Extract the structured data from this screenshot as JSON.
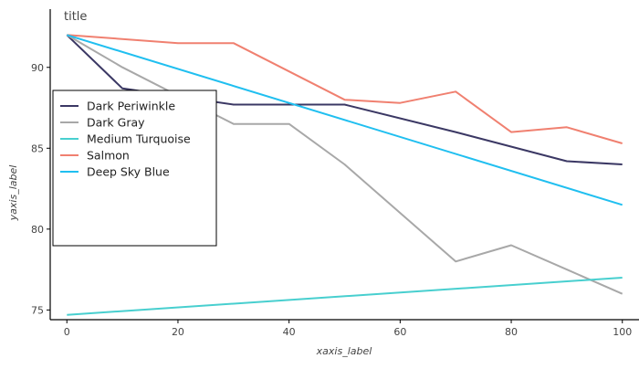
{
  "chart_data": {
    "type": "line",
    "title": "title",
    "xlabel": "xaxis_label",
    "ylabel": "yaxis_label",
    "xlim": [
      -3,
      103
    ],
    "ylim": [
      74.4,
      93.6
    ],
    "x_ticks": [
      0,
      20,
      40,
      60,
      80,
      100
    ],
    "y_ticks": [
      75,
      80,
      85,
      90
    ],
    "legend": {
      "placement": "left"
    },
    "series": [
      {
        "name": "Dark Periwinkle",
        "color": "#3b3864",
        "x": [
          0,
          10,
          30,
          50,
          70,
          90,
          100
        ],
        "values": [
          92.0,
          88.7,
          87.7,
          87.7,
          86.0,
          84.2,
          84.0
        ]
      },
      {
        "name": "Dark Gray",
        "color": "#a8a8a8",
        "x": [
          0,
          10,
          30,
          40,
          50,
          70,
          80,
          90,
          100
        ],
        "values": [
          92.0,
          90.0,
          86.5,
          86.5,
          84.0,
          78.0,
          79.0,
          77.5,
          76.0
        ]
      },
      {
        "name": "Medium Turquoise",
        "color": "#48cfcf",
        "x": [
          0,
          100
        ],
        "values": [
          74.7,
          77.0
        ]
      },
      {
        "name": "Salmon",
        "color": "#f08070",
        "x": [
          0,
          20,
          30,
          50,
          60,
          70,
          80,
          90,
          100
        ],
        "values": [
          92.0,
          91.5,
          91.5,
          88.0,
          87.8,
          88.5,
          86.0,
          86.3,
          85.3
        ]
      },
      {
        "name": "Deep Sky Blue",
        "color": "#20bff0",
        "x": [
          0,
          100
        ],
        "values": [
          92.0,
          81.5
        ]
      }
    ]
  }
}
